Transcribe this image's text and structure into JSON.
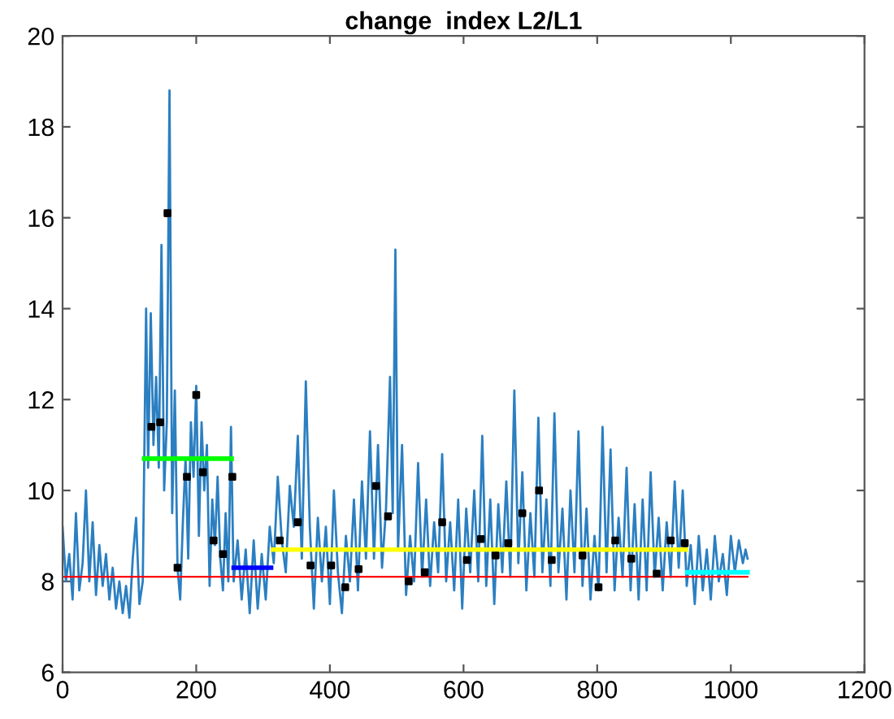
{
  "chart_data": {
    "type": "line",
    "title": "change  index L2/L1",
    "xlim": [
      0,
      1200
    ],
    "xticks": [
      0,
      200,
      400,
      600,
      800,
      1000,
      1200
    ],
    "ylim": [
      6,
      20
    ],
    "yticks": [
      6,
      8,
      10,
      12,
      14,
      16,
      18,
      20
    ],
    "grid": false,
    "legend": false,
    "series": [
      {
        "color": "#2b7fc1",
        "x": [
          0,
          5,
          10,
          15,
          20,
          25,
          30,
          35,
          40,
          45,
          50,
          55,
          60,
          65,
          70,
          75,
          80,
          85,
          90,
          95,
          100,
          105,
          110,
          115,
          120,
          125,
          128,
          132,
          136,
          140,
          144,
          148,
          152,
          156,
          160,
          164,
          168,
          172,
          176,
          180,
          184,
          188,
          192,
          196,
          200,
          204,
          208,
          212,
          216,
          220,
          224,
          228,
          232,
          236,
          240,
          244,
          248,
          252,
          256,
          262,
          268,
          274,
          280,
          286,
          292,
          298,
          304,
          310,
          316,
          322,
          328,
          334,
          340,
          346,
          352,
          358,
          364,
          370,
          376,
          382,
          388,
          394,
          400,
          406,
          412,
          418,
          424,
          430,
          436,
          442,
          448,
          454,
          460,
          466,
          472,
          478,
          484,
          490,
          494,
          498,
          502,
          508,
          514,
          520,
          526,
          532,
          538,
          544,
          550,
          556,
          562,
          568,
          574,
          580,
          586,
          592,
          598,
          604,
          610,
          616,
          622,
          628,
          634,
          640,
          646,
          652,
          658,
          664,
          670,
          676,
          682,
          688,
          694,
          700,
          706,
          712,
          718,
          724,
          730,
          736,
          742,
          748,
          754,
          760,
          766,
          772,
          778,
          784,
          790,
          796,
          802,
          808,
          814,
          820,
          826,
          832,
          838,
          844,
          850,
          856,
          862,
          868,
          874,
          880,
          886,
          892,
          898,
          904,
          910,
          916,
          922,
          928,
          934,
          940,
          946,
          952,
          958,
          964,
          970,
          976,
          982,
          988,
          994,
          1000,
          1006,
          1012,
          1018,
          1022,
          1025
        ],
        "values": [
          9.2,
          8.0,
          8.6,
          7.6,
          9.5,
          7.8,
          8.4,
          10.0,
          8.0,
          9.3,
          7.7,
          8.8,
          7.9,
          8.6,
          7.6,
          8.3,
          7.4,
          8.0,
          7.3,
          7.9,
          7.2,
          8.5,
          9.4,
          7.5,
          8.0,
          14.0,
          10.5,
          13.9,
          11.0,
          12.5,
          10.5,
          15.4,
          10.0,
          11.5,
          18.8,
          9.5,
          12.2,
          8.3,
          7.6,
          9.3,
          10.7,
          8.5,
          11.5,
          10.3,
          12.3,
          9.0,
          11.5,
          10.0,
          11.0,
          7.9,
          9.8,
          8.8,
          10.3,
          8.5,
          7.8,
          9.5,
          8.0,
          11.4,
          8.0,
          8.9,
          7.6,
          8.7,
          7.3,
          8.9,
          7.4,
          8.6,
          7.6,
          9.2,
          8.4,
          10.3,
          8.9,
          8.2,
          10.1,
          9.2,
          11.2,
          8.5,
          12.4,
          9.2,
          7.4,
          9.4,
          8.0,
          9.2,
          7.5,
          10.0,
          8.2,
          7.3,
          9.0,
          8.0,
          9.8,
          7.8,
          10.2,
          8.5,
          11.3,
          8.5,
          11.0,
          8.3,
          9.6,
          12.5,
          9.5,
          15.3,
          8.7,
          11.0,
          7.7,
          9.0,
          8.0,
          10.6,
          8.1,
          9.8,
          7.9,
          9.3,
          8.2,
          10.8,
          8.0,
          9.3,
          7.8,
          9.8,
          7.4,
          9.6,
          8.2,
          10.0,
          8.0,
          11.2,
          7.9,
          9.8,
          7.5,
          9.7,
          8.2,
          10.2,
          8.1,
          12.2,
          8.4,
          10.4,
          7.8,
          9.5,
          8.1,
          11.6,
          8.2,
          9.8,
          7.9,
          11.7,
          8.2,
          9.6,
          7.6,
          10.0,
          8.2,
          11.3,
          7.9,
          9.6,
          7.6,
          9.0,
          7.8,
          11.4,
          8.2,
          10.9,
          7.8,
          9.4,
          8.1,
          10.5,
          7.8,
          9.7,
          7.6,
          9.8,
          7.8,
          10.4,
          8.1,
          9.4,
          7.8,
          9.3,
          8.1,
          10.2,
          8.3,
          10.0,
          7.9,
          8.8,
          7.5,
          9.0,
          7.8,
          8.7,
          7.6,
          9.0,
          8.0,
          8.6,
          7.7,
          9.0,
          8.2,
          8.9,
          8.4,
          8.7,
          8.5
        ]
      },
      {
        "color": "#ff0000",
        "x": [
          0,
          1025
        ],
        "values": [
          8.1,
          8.1
        ]
      },
      {
        "color": "#00ff00",
        "x": [
          122,
          253
        ],
        "values": [
          10.7,
          10.7
        ]
      },
      {
        "color": "#0000ff",
        "x": [
          256,
          312
        ],
        "values": [
          8.3,
          8.3
        ]
      },
      {
        "color": "#ffff00",
        "x": [
          315,
          933
        ],
        "values": [
          8.7,
          8.7
        ]
      },
      {
        "color": "#00ffff",
        "x": [
          935,
          1025
        ],
        "values": [
          8.2,
          8.2
        ]
      },
      {
        "type": "scatter",
        "color": "#000000",
        "marker": "square",
        "x": [
          133,
          146,
          157,
          172,
          186,
          200,
          210,
          226,
          240,
          254,
          325,
          352,
          371,
          402,
          423,
          443,
          469,
          487,
          518,
          542,
          568,
          605,
          626,
          648,
          667,
          688,
          713,
          732,
          778,
          802,
          827,
          851,
          889,
          910,
          931
        ],
        "values": [
          11.4,
          11.5,
          16.1,
          8.3,
          10.3,
          12.1,
          10.4,
          8.9,
          8.6,
          10.3,
          8.9,
          9.3,
          8.35,
          8.35,
          7.87,
          8.27,
          10.1,
          9.43,
          8.0,
          8.2,
          9.3,
          8.47,
          8.93,
          8.57,
          8.84,
          9.5,
          10.0,
          8.47,
          8.57,
          7.87,
          8.9,
          8.5,
          8.17,
          8.9,
          8.84
        ]
      }
    ]
  }
}
